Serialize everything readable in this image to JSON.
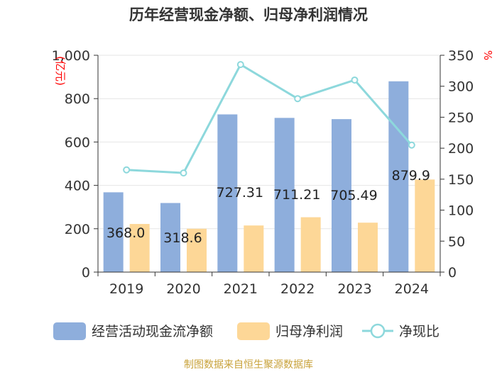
{
  "title": "历年经营现金净额、归母净利润情况",
  "source": "制图数据来自恒生聚源数据库",
  "colors": {
    "bar1": "#8eaedc",
    "bar2": "#fdd797",
    "line": "#8dd8dc",
    "unit": "#ff0000",
    "axis": "#333333",
    "grid": "#e6e6e6",
    "source": "#c8a23a"
  },
  "chart_data": {
    "type": "bar",
    "categories": [
      "2019",
      "2020",
      "2021",
      "2022",
      "2023",
      "2024"
    ],
    "left_axis": {
      "unit": "亿元",
      "ylim": [
        0,
        1000
      ],
      "ticks": [
        0,
        200,
        400,
        600,
        800,
        1000
      ],
      "tick_labels": [
        "0",
        "200",
        "400",
        "600",
        "800",
        "1,000"
      ]
    },
    "right_axis": {
      "unit": "%",
      "ylim": [
        0,
        350
      ],
      "ticks": [
        0,
        50,
        100,
        150,
        200,
        250,
        300,
        350
      ],
      "tick_labels": [
        "0",
        "50",
        "100",
        "150",
        "200",
        "250",
        "300",
        "350"
      ]
    },
    "series": [
      {
        "name": "经营活动现金流净额",
        "kind": "bar",
        "axis": "left",
        "values": [
          368.0,
          318.6,
          727.31,
          711.21,
          705.49,
          879.9
        ],
        "data_labels": [
          "368.0",
          "318.6",
          "727.31",
          "711.21",
          "705.49",
          "879.9"
        ]
      },
      {
        "name": "归母净利润",
        "kind": "bar",
        "axis": "left",
        "values": [
          222,
          200,
          215,
          253,
          228,
          427
        ]
      },
      {
        "name": "净现比",
        "kind": "line",
        "axis": "right",
        "values": [
          165,
          160,
          335,
          280,
          310,
          205
        ]
      }
    ],
    "grid": true,
    "legend_position": "bottom"
  }
}
